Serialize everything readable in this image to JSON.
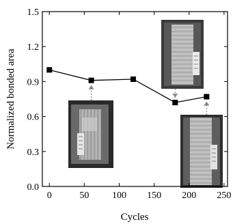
{
  "chart_data": {
    "type": "line",
    "title": "",
    "xlabel": "Cycles",
    "ylabel": "Normalized bonded area",
    "xlim": [
      -10,
      255
    ],
    "ylim": [
      0,
      1.5
    ],
    "x_ticks": [
      0,
      50,
      100,
      150,
      200,
      250
    ],
    "x_tick_labels": [
      "0",
      "50",
      "100",
      "150",
      "200",
      "250"
    ],
    "y_ticks": [
      0,
      0.3,
      0.6,
      0.9,
      1.2,
      1.5
    ],
    "y_tick_labels": [
      "0.0",
      "0.3",
      "0.6",
      "0.9",
      "1.2",
      "1.5"
    ],
    "grid": false,
    "marker": "square",
    "line_color": "#000000",
    "series": [
      {
        "x": [
          0,
          60,
          120,
          180,
          225
        ],
        "y": [
          1.0,
          0.91,
          0.92,
          0.72,
          0.77
        ]
      }
    ],
    "photo_insets": [
      {
        "points_to_x": 60,
        "points_to_y": 0.91,
        "shows": "specimen-photo-1",
        "pointer_color": "#888888"
      },
      {
        "points_to_x": 180,
        "points_to_y": 0.72,
        "shows": "specimen-photo-2",
        "pointer_color": "#888888"
      },
      {
        "points_to_x": 225,
        "points_to_y": 0.77,
        "shows": "specimen-photo-3",
        "pointer_color": "#888888"
      }
    ]
  }
}
